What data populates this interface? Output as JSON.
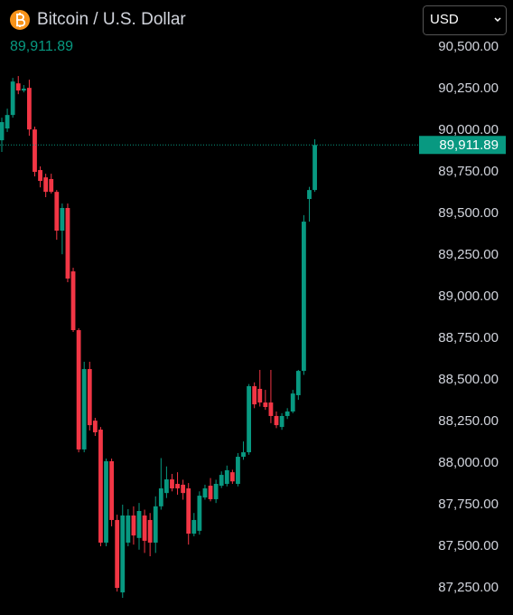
{
  "chart_data": {
    "type": "candlestick",
    "title": "Bitcoin / U.S. Dollar",
    "currency": "USD",
    "last_price": {
      "value": 89911.89,
      "label": "89,911.89"
    },
    "up_color": "#089981",
    "down_color": "#f23645",
    "ylim": [
      87087,
      90783
    ],
    "yticks": [
      {
        "value": 87250,
        "label": "87,250.00"
      },
      {
        "value": 87500,
        "label": "87,500.00"
      },
      {
        "value": 87750,
        "label": "87,750.00"
      },
      {
        "value": 88000,
        "label": "88,000.00"
      },
      {
        "value": 88250,
        "label": "88,250.00"
      },
      {
        "value": 88500,
        "label": "88,500.00"
      },
      {
        "value": 88750,
        "label": "88,750.00"
      },
      {
        "value": 89000,
        "label": "89,000.00"
      },
      {
        "value": 89250,
        "label": "89,250.00"
      },
      {
        "value": 89500,
        "label": "89,500.00"
      },
      {
        "value": 89750,
        "label": "89,750.00"
      },
      {
        "value": 90000,
        "label": "90,000.00"
      },
      {
        "value": 90250,
        "label": "90,250.00"
      },
      {
        "value": 90500,
        "label": "90,500.00"
      }
    ],
    "open": [
      89940,
      90011,
      90092,
      90282,
      90239,
      90255,
      90005,
      89761,
      89717,
      89707,
      89630,
      89397,
      89533,
      89152,
      88799,
      88082,
      88565,
      88255,
      88201,
      87522,
      88011,
      87658,
      87223,
      87522,
      87685,
      87550,
      87685,
      87658,
      87522,
      87740,
      87820,
      87902,
      87875,
      87870,
      87848,
      87576,
      87593,
      87793,
      87864,
      87783,
      87864,
      87875,
      87945,
      87875,
      88038,
      88065,
      88462,
      88446,
      88364,
      88364,
      88283,
      88217,
      88283,
      88310,
      88408,
      88554,
      89587,
      89641
    ],
    "high": [
      90076,
      90130,
      90315,
      90326,
      90272,
      90304,
      90022,
      89783,
      89739,
      89739,
      89641,
      89560,
      89560,
      89174,
      88810,
      88609,
      88609,
      88272,
      88217,
      88027,
      88027,
      87690,
      87750,
      87723,
      87740,
      87760,
      87720,
      87700,
      87800,
      88030,
      87980,
      87935,
      87945,
      87900,
      87880,
      87700,
      87830,
      87870,
      87910,
      87900,
      87950,
      87985,
      87960,
      88060,
      88130,
      88475,
      88485,
      88560,
      88440,
      88560,
      88310,
      88300,
      88330,
      88440,
      88560,
      89490,
      89660,
      89946
    ],
    "low": [
      89870,
      89990,
      90076,
      90217,
      90228,
      89967,
      89723,
      89657,
      89598,
      89620,
      89342,
      89255,
      89087,
      88788,
      88065,
      88065,
      88196,
      88163,
      87500,
      87500,
      87620,
      87228,
      87190,
      87500,
      87510,
      87480,
      87460,
      87440,
      87460,
      87720,
      87790,
      87830,
      87810,
      87780,
      87510,
      87560,
      87570,
      87780,
      87770,
      87760,
      87850,
      87860,
      87875,
      87860,
      88020,
      88050,
      88330,
      88340,
      88320,
      88240,
      88210,
      88200,
      88265,
      88300,
      88380,
      88530,
      89451,
      89630
    ],
    "close": [
      90049,
      90092,
      90293,
      90239,
      90250,
      90005,
      89750,
      89696,
      89630,
      89630,
      89397,
      89533,
      89109,
      88799,
      88082,
      88565,
      88228,
      88185,
      87522,
      88011,
      87658,
      87250,
      87685,
      87685,
      87565,
      87712,
      87533,
      87522,
      87740,
      87848,
      87902,
      87848,
      87848,
      87820,
      87576,
      87658,
      87804,
      87848,
      87783,
      87875,
      87929,
      87957,
      87890,
      88038,
      88065,
      88462,
      88353,
      88364,
      88337,
      88283,
      88228,
      88283,
      88310,
      88418,
      88554,
      89451,
      89641,
      89911.89
    ]
  }
}
